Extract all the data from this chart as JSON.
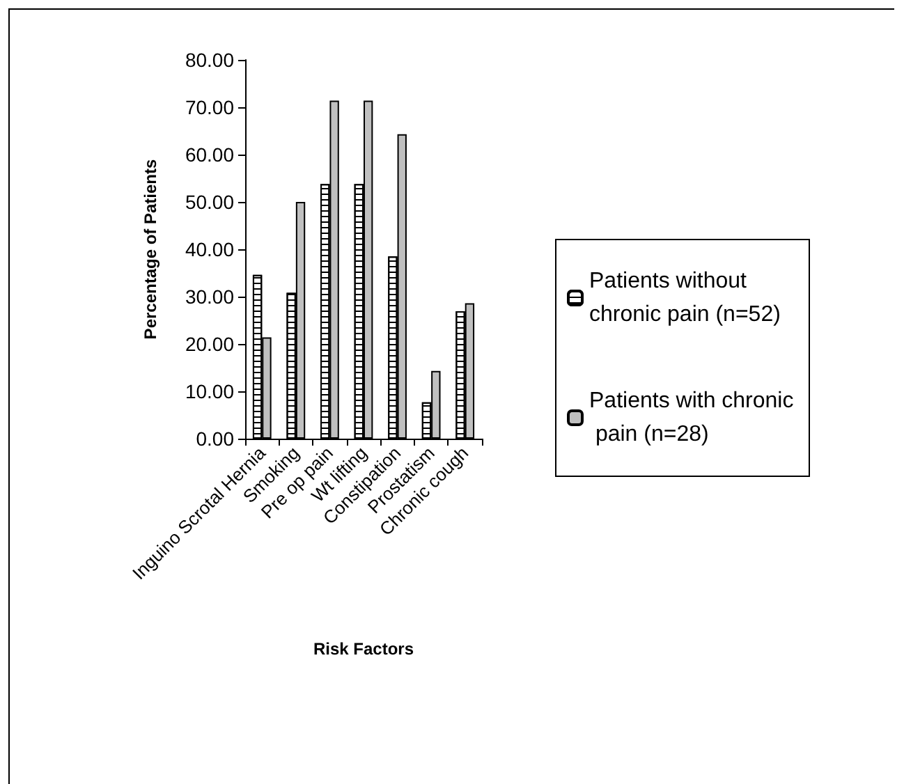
{
  "chart_data": {
    "type": "bar",
    "xlabel": "Risk Factors",
    "ylabel": "Percentage of Patients",
    "categories": [
      "Inguino Scrotal Hernia",
      "Smoking",
      "Pre op pain",
      "Wt lifting",
      "Constipation",
      "Prostatism",
      "Chronic cough"
    ],
    "series": [
      {
        "name": "Patients without chronic pain (n=52)",
        "color": "#ffffff",
        "values": [
          34.6,
          30.8,
          53.8,
          53.8,
          38.5,
          7.7,
          26.9
        ]
      },
      {
        "name": "Patients with chronic pain (n=28)",
        "color": "#c0c0c0",
        "values": [
          21.4,
          50.0,
          71.4,
          71.4,
          64.3,
          14.3,
          28.6
        ]
      }
    ],
    "ylim": [
      0,
      80
    ],
    "yticks": [
      {
        "value": 0,
        "label": "0.00"
      },
      {
        "value": 10,
        "label": "10.00"
      },
      {
        "value": 20,
        "label": "20.00"
      },
      {
        "value": 30,
        "label": "30.00"
      },
      {
        "value": 40,
        "label": "40.00"
      },
      {
        "value": 50,
        "label": "50.00"
      },
      {
        "value": 60,
        "label": "60.00"
      },
      {
        "value": 70,
        "label": "70.00"
      },
      {
        "value": 80,
        "label": "80.00"
      }
    ],
    "grid": false,
    "legend": "right"
  }
}
